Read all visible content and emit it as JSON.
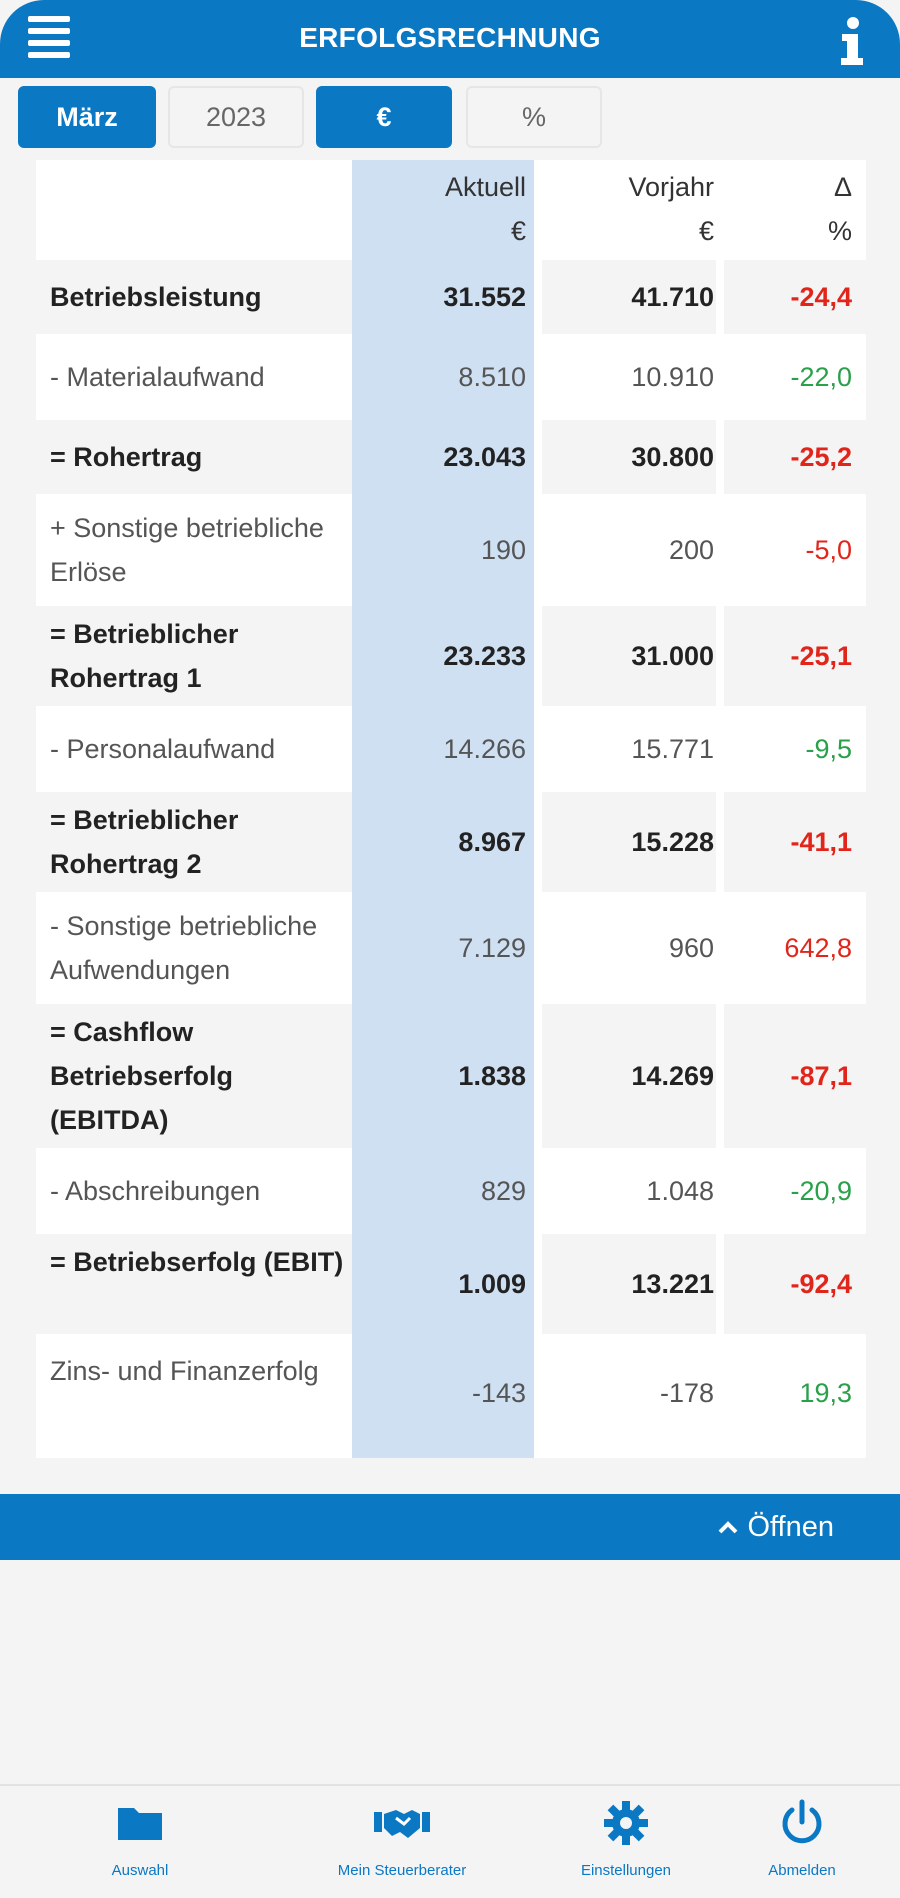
{
  "header": {
    "title": "ERFOLGSRECHNUNG",
    "menu_icon": "menu-icon",
    "info_icon": "info-icon"
  },
  "filters": {
    "month": "März",
    "year": "2023",
    "currency": "€",
    "percent": "%"
  },
  "table": {
    "columns": [
      {
        "name": "Aktuell",
        "unit": "€"
      },
      {
        "name": "Vorjahr",
        "unit": "€"
      },
      {
        "name": "Δ",
        "unit": "%"
      }
    ],
    "rows": [
      {
        "label": "Betriebsleistung",
        "bold": true,
        "aktuell": "31.552",
        "vorjahr": "41.710",
        "delta": "-24,4",
        "trend": "neg"
      },
      {
        "label": "- Materialaufwand",
        "bold": false,
        "aktuell": "8.510",
        "vorjahr": "10.910",
        "delta": "-22,0",
        "trend": "pos"
      },
      {
        "label": "= Rohertrag",
        "bold": true,
        "aktuell": "23.043",
        "vorjahr": "30.800",
        "delta": "-25,2",
        "trend": "neg"
      },
      {
        "label": "+ Sonstige betriebliche Erlöse",
        "bold": false,
        "aktuell": "190",
        "vorjahr": "200",
        "delta": "-5,0",
        "trend": "neg"
      },
      {
        "label": "= Betrieblicher Rohertrag 1",
        "bold": true,
        "aktuell": "23.233",
        "vorjahr": "31.000",
        "delta": "-25,1",
        "trend": "neg"
      },
      {
        "label": "- Personalaufwand",
        "bold": false,
        "aktuell": "14.266",
        "vorjahr": "15.771",
        "delta": "-9,5",
        "trend": "pos"
      },
      {
        "label": "= Betrieblicher Rohertrag 2",
        "bold": true,
        "aktuell": "8.967",
        "vorjahr": "15.228",
        "delta": "-41,1",
        "trend": "neg"
      },
      {
        "label": "- Sonstige betriebliche Aufwendungen",
        "bold": false,
        "aktuell": "7.129",
        "vorjahr": "960",
        "delta": "642,8",
        "trend": "neg"
      },
      {
        "label": "= Cashflow Betriebserfolg (EBITDA)",
        "bold": true,
        "aktuell": "1.838",
        "vorjahr": "14.269",
        "delta": "-87,1",
        "trend": "neg"
      },
      {
        "label": "- Abschreibungen",
        "bold": false,
        "aktuell": "829",
        "vorjahr": "1.048",
        "delta": "-20,9",
        "trend": "pos"
      },
      {
        "label": "= Betriebserfolg (EBIT)",
        "bold": true,
        "aktuell": "1.009",
        "vorjahr": "13.221",
        "delta": "-92,4",
        "trend": "neg"
      },
      {
        "label": "Zins- und Finanzerfolg",
        "bold": false,
        "aktuell": "-143",
        "vorjahr": "-178",
        "delta": "19,3",
        "trend": "pos"
      }
    ]
  },
  "panel": {
    "open_label": "Öffnen",
    "icon": "chevron-up-icon"
  },
  "tabbar": [
    {
      "label": "Auswahl",
      "icon": "folder-icon"
    },
    {
      "label": "Mein Steuerberater",
      "icon": "handshake-icon"
    },
    {
      "label": "Einstellungen",
      "icon": "gear-icon"
    },
    {
      "label": "Abmelden",
      "icon": "power-icon"
    }
  ],
  "colors": {
    "accent": "#0b78c3",
    "negative": "#e1251b",
    "positive": "#2aa04a",
    "current_col": "#cfe0f3"
  }
}
